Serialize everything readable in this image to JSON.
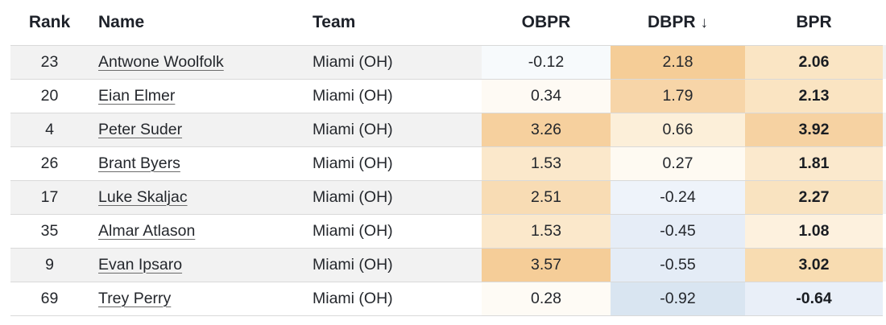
{
  "header": {
    "rank_label": "Rank",
    "name_label": "Name",
    "team_label": "Team",
    "obpr_label": "OBPR",
    "dbpr_label": "DBPR",
    "dbpr_sort_indicator": "↓",
    "bpr_label": "BPR"
  },
  "colors": {
    "row_stripe": "#f2f2f2",
    "row_border": "#d9d9d9",
    "heat_positive_strong": "#f5cd97",
    "heat_negative_strong": "#d9e5f1"
  },
  "rows": [
    {
      "rank": "23",
      "name": "Antwone Woolfolk",
      "team": "Miami (OH)",
      "obpr": "-0.12",
      "dbpr": "2.18",
      "bpr": "2.06",
      "obpr_bg": "#f7fafc",
      "dbpr_bg": "#f5cd97",
      "bpr_bg": "#fae5c4"
    },
    {
      "rank": "20",
      "name": "Eian Elmer",
      "team": "Miami (OH)",
      "obpr": "0.34",
      "dbpr": "1.79",
      "bpr": "2.13",
      "obpr_bg": "#fefaf4",
      "dbpr_bg": "#f7d5a8",
      "bpr_bg": "#fae4c2"
    },
    {
      "rank": "4",
      "name": "Peter Suder",
      "team": "Miami (OH)",
      "obpr": "3.26",
      "dbpr": "0.66",
      "bpr": "3.92",
      "obpr_bg": "#f6d09e",
      "dbpr_bg": "#fcefd9",
      "bpr_bg": "#f6d2a2"
    },
    {
      "rank": "26",
      "name": "Brant Byers",
      "team": "Miami (OH)",
      "obpr": "1.53",
      "dbpr": "0.27",
      "bpr": "1.81",
      "obpr_bg": "#fbe8cb",
      "dbpr_bg": "#fefaf2",
      "bpr_bg": "#fbe9cd"
    },
    {
      "rank": "17",
      "name": "Luke Skaljac",
      "team": "Miami (OH)",
      "obpr": "2.51",
      "dbpr": "-0.24",
      "bpr": "2.27",
      "obpr_bg": "#f8dcb4",
      "dbpr_bg": "#eef3fa",
      "bpr_bg": "#f9e3c0"
    },
    {
      "rank": "35",
      "name": "Almar Atlason",
      "team": "Miami (OH)",
      "obpr": "1.53",
      "dbpr": "-0.45",
      "bpr": "1.08",
      "obpr_bg": "#fbe8cb",
      "dbpr_bg": "#e6edf7",
      "bpr_bg": "#fdf1de"
    },
    {
      "rank": "9",
      "name": "Evan Ipsaro",
      "team": "Miami (OH)",
      "obpr": "3.57",
      "dbpr": "-0.55",
      "bpr": "3.02",
      "obpr_bg": "#f5cd98",
      "dbpr_bg": "#e4ecf6",
      "bpr_bg": "#f8dcb1"
    },
    {
      "rank": "69",
      "name": "Trey Perry",
      "team": "Miami (OH)",
      "obpr": "0.28",
      "dbpr": "-0.92",
      "bpr": "-0.64",
      "obpr_bg": "#fefbf5",
      "dbpr_bg": "#d9e5f1",
      "bpr_bg": "#e9eff8"
    }
  ]
}
